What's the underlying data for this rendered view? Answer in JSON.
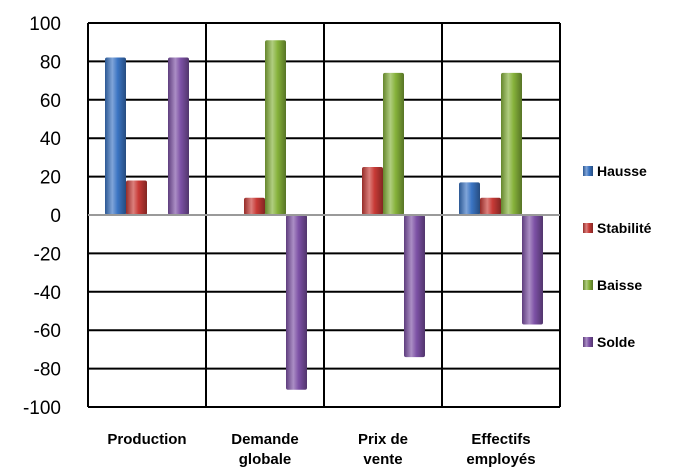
{
  "chart_data": {
    "type": "bar",
    "categories": [
      [
        "Production"
      ],
      [
        "Demande",
        "globale"
      ],
      [
        "Prix de",
        "vente"
      ],
      [
        "Effectifs",
        "employés"
      ]
    ],
    "series": [
      {
        "name": "Hausse",
        "values": [
          82,
          0,
          0,
          17
        ],
        "color": "#3b75c4"
      },
      {
        "name": "Stabilité",
        "values": [
          18,
          9,
          25,
          9
        ],
        "color": "#c83a36"
      },
      {
        "name": "Baisse",
        "values": [
          0,
          91,
          74,
          74
        ],
        "color": "#86b23a"
      },
      {
        "name": "Solde",
        "values": [
          82,
          -91,
          -74,
          -57
        ],
        "color": "#7d51a6"
      }
    ],
    "ylim": [
      -100,
      100
    ],
    "yticks": [
      "-100",
      "-80",
      "-60",
      "-40",
      "-20",
      "0",
      "20",
      "40",
      "60",
      "80",
      "100"
    ],
    "grid": true,
    "legend_position": "right"
  }
}
